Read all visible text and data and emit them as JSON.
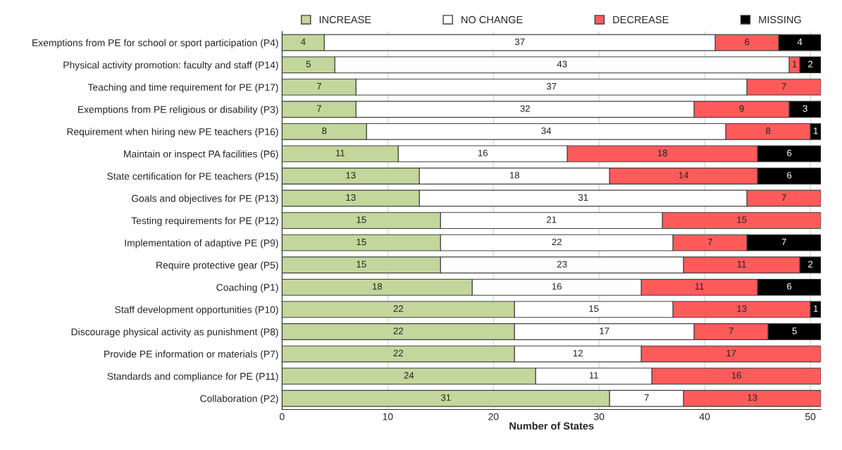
{
  "chart_data": {
    "type": "bar",
    "orientation": "horizontal",
    "stacked": true,
    "xlabel": "Number of States",
    "categories": [
      "Exemptions from PE for school or sport participation (P4)",
      "Physical activity promotion: faculty and staff (P14)",
      "Teaching and time requirement for PE (P17)",
      "Exemptions from PE religious or disability (P3)",
      "Requirement when hiring new PE teachers (P16)",
      "Maintain or inspect PA facilities (P6)",
      "State certification for PE teachers (P15)",
      "Goals and objectives for PE (P13)",
      "Testing requirements for PE (P12)",
      "Implementation of adaptive PE (P9)",
      "Require protective gear (P5)",
      "Coaching (P1)",
      "Staff development opportunities (P10)",
      "Discourage physical activity as punishment (P8)",
      "Provide PE information or materials (P7)",
      "Standards and compliance for PE (P11)",
      "Collaboration (P2)"
    ],
    "series": [
      {
        "name": "INCREASE",
        "color": "#c3d69b",
        "values": [
          4,
          5,
          7,
          7,
          8,
          11,
          13,
          13,
          15,
          15,
          15,
          18,
          22,
          22,
          22,
          24,
          31
        ]
      },
      {
        "name": "NO CHANGE",
        "color": "#ffffff",
        "values": [
          37,
          43,
          37,
          32,
          34,
          16,
          18,
          31,
          21,
          22,
          23,
          16,
          15,
          17,
          12,
          11,
          7
        ]
      },
      {
        "name": "DECREASE",
        "color": "#ff5b5b",
        "values": [
          6,
          1,
          7,
          9,
          8,
          18,
          14,
          7,
          15,
          7,
          11,
          11,
          13,
          7,
          17,
          16,
          13
        ]
      },
      {
        "name": "MISSING",
        "color": "#000000",
        "values": [
          4,
          2,
          null,
          3,
          1,
          6,
          6,
          null,
          null,
          7,
          2,
          6,
          1,
          5,
          null,
          null,
          null
        ]
      }
    ],
    "xlim": [
      0,
      51
    ],
    "xticks": [
      0,
      10,
      20,
      30,
      40,
      50
    ],
    "grid": "x",
    "legend": "top",
    "data_labels": true
  }
}
